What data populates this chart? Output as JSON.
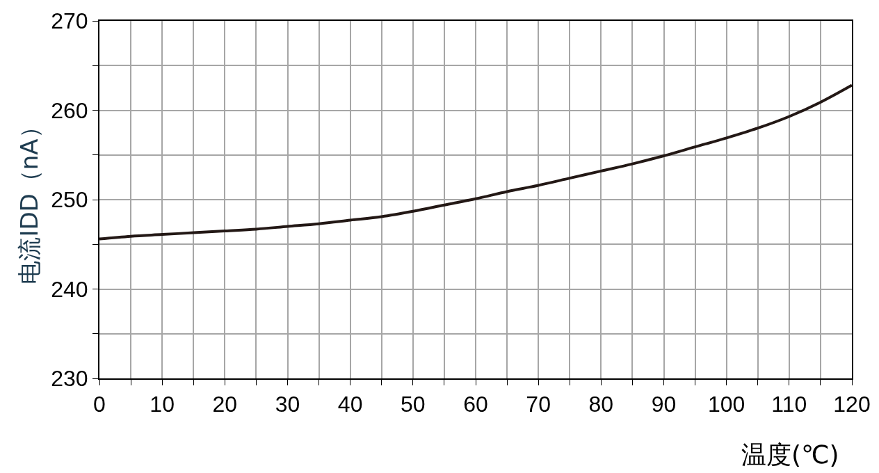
{
  "chart_data": {
    "type": "line",
    "xlabel": "温度(℃)",
    "ylabel": "电流IDD（nA）",
    "x": [
      0,
      5,
      10,
      15,
      20,
      25,
      30,
      35,
      40,
      45,
      50,
      55,
      60,
      65,
      70,
      75,
      80,
      85,
      90,
      95,
      100,
      105,
      110,
      115,
      120
    ],
    "series": [
      {
        "color": "#231815",
        "values": [
          245.6,
          245.9,
          246.1,
          246.3,
          246.5,
          246.7,
          247.0,
          247.3,
          247.7,
          248.1,
          248.7,
          249.4,
          250.1,
          250.9,
          251.6,
          252.4,
          253.2,
          254.0,
          254.9,
          255.9,
          256.9,
          258.0,
          259.3,
          260.9,
          262.8
        ]
      }
    ],
    "xlim": [
      0,
      120
    ],
    "ylim": [
      230,
      270
    ],
    "xticks": [
      0,
      {
        "value": 5,
        "label": null
      },
      10,
      {
        "value": 15,
        "label": null
      },
      20,
      {
        "value": 25,
        "label": null
      },
      30,
      {
        "value": 35,
        "label": null
      },
      40,
      {
        "value": 45,
        "label": null
      },
      50,
      {
        "value": 55,
        "label": null
      },
      60,
      {
        "value": 65,
        "label": null
      },
      70,
      {
        "value": 75,
        "label": null
      },
      80,
      {
        "value": 85,
        "label": null
      },
      90,
      {
        "value": 95,
        "label": null
      },
      100,
      {
        "value": 105,
        "label": null
      },
      110,
      {
        "value": 115,
        "label": null
      },
      120
    ],
    "yticks": [
      230,
      {
        "value": 235,
        "label": null
      },
      240,
      {
        "value": 245,
        "label": null
      },
      250,
      {
        "value": 255,
        "label": null
      },
      260,
      {
        "value": 265,
        "label": null
      },
      270
    ],
    "grid": true,
    "marker": "none",
    "line_style": "solid"
  }
}
